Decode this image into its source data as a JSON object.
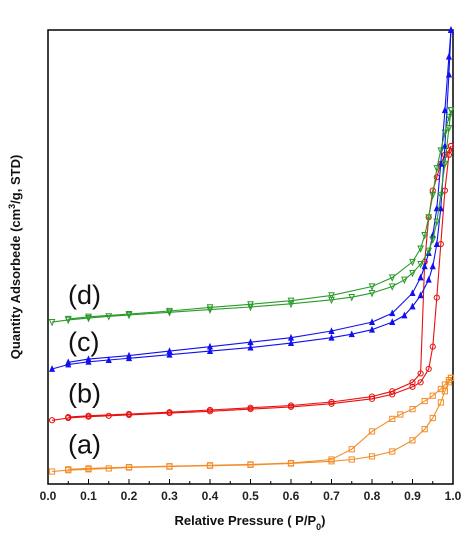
{
  "chart_data": {
    "type": "line",
    "title": "",
    "xlabel": "Relative Pressure ( P/P",
    "xlabel_sub": "0",
    "xlabel_end": ")",
    "ylabel": "Quantity Adsorbede (cm",
    "ylabel_sup": "3",
    "ylabel_end": "/g, STD)",
    "xlim": [
      0.0,
      1.0
    ],
    "ylim": [
      0,
      100
    ],
    "x_ticks": [
      "0.0",
      "0.1",
      "0.2",
      "0.3",
      "0.4",
      "0.5",
      "0.6",
      "0.7",
      "0.8",
      "0.9",
      "1.0"
    ],
    "y_tick_labels_shown": false,
    "grid": false,
    "series": [
      {
        "name": "(a)",
        "color": "#f28c28",
        "marker": "square",
        "adsorption": {
          "x": [
            0.01,
            0.05,
            0.1,
            0.15,
            0.2,
            0.3,
            0.4,
            0.5,
            0.6,
            0.7,
            0.75,
            0.8,
            0.85,
            0.9,
            0.93,
            0.95,
            0.97,
            0.98,
            0.99,
            0.995
          ],
          "y": [
            1.0,
            1.3,
            1.5,
            1.7,
            1.9,
            2.1,
            2.3,
            2.5,
            2.8,
            3.3,
            3.7,
            4.4,
            5.5,
            8.0,
            10.5,
            13.0,
            16.5,
            19.0,
            21.0,
            22.0
          ]
        },
        "desorption": {
          "x": [
            0.995,
            0.99,
            0.98,
            0.97,
            0.95,
            0.93,
            0.9,
            0.87,
            0.85,
            0.8,
            0.75,
            0.7,
            0.6,
            0.5,
            0.4,
            0.3,
            0.2,
            0.1,
            0.05
          ],
          "y": [
            22.0,
            21.5,
            20.5,
            19.5,
            18.0,
            16.8,
            15.0,
            13.8,
            12.8,
            10.0,
            6.0,
            3.7,
            2.9,
            2.6,
            2.4,
            2.2,
            2.0,
            1.7,
            1.5
          ]
        }
      },
      {
        "name": "(b)",
        "color": "#e8100f",
        "marker": "circle",
        "adsorption": {
          "x": [
            0.01,
            0.05,
            0.1,
            0.15,
            0.2,
            0.3,
            0.4,
            0.5,
            0.6,
            0.7,
            0.8,
            0.85,
            0.9,
            0.92,
            0.94,
            0.95,
            0.96,
            0.97,
            0.98,
            0.99,
            0.995
          ],
          "y": [
            12.5,
            13.0,
            13.3,
            13.5,
            13.7,
            14.1,
            14.5,
            15.0,
            15.5,
            16.2,
            17.3,
            18.3,
            20.0,
            21.0,
            24.0,
            29.0,
            40.0,
            52.0,
            64.0,
            72.0,
            74.0
          ]
        },
        "desorption": {
          "x": [
            0.995,
            0.99,
            0.98,
            0.97,
            0.96,
            0.95,
            0.94,
            0.93,
            0.92,
            0.9,
            0.85,
            0.8,
            0.7,
            0.6,
            0.5,
            0.4,
            0.3,
            0.2,
            0.1,
            0.05
          ],
          "y": [
            74.0,
            73.0,
            72.0,
            70.0,
            67.0,
            64.0,
            58.0,
            48.0,
            23.0,
            21.0,
            19.0,
            17.8,
            16.6,
            15.8,
            15.3,
            14.8,
            14.3,
            13.9,
            13.5,
            13.2
          ]
        }
      },
      {
        "name": "(c)",
        "color": "#1010f0",
        "marker": "triangle-up",
        "adsorption": {
          "x": [
            0.01,
            0.05,
            0.1,
            0.15,
            0.2,
            0.3,
            0.4,
            0.5,
            0.6,
            0.7,
            0.75,
            0.8,
            0.85,
            0.88,
            0.9,
            0.92,
            0.94,
            0.95,
            0.96,
            0.97,
            0.98,
            0.99,
            0.995
          ],
          "y": [
            24.0,
            25.0,
            25.6,
            26.0,
            26.4,
            27.2,
            28.0,
            28.8,
            29.8,
            31.0,
            31.8,
            32.8,
            34.5,
            36.0,
            38.0,
            40.5,
            44.0,
            47.0,
            52.0,
            60.0,
            74.0,
            90.0,
            100.0
          ]
        },
        "desorption": {
          "x": [
            0.995,
            0.99,
            0.98,
            0.97,
            0.96,
            0.95,
            0.94,
            0.93,
            0.92,
            0.9,
            0.85,
            0.8,
            0.7,
            0.6,
            0.5,
            0.4,
            0.3,
            0.2,
            0.1,
            0.05
          ],
          "y": [
            100.0,
            94.0,
            82.0,
            70.0,
            60.0,
            54.0,
            50.0,
            47.0,
            44.5,
            41.0,
            36.5,
            34.5,
            32.5,
            31.0,
            30.0,
            29.0,
            28.0,
            27.0,
            26.2,
            25.5
          ]
        }
      },
      {
        "name": "(d)",
        "color": "#2a9a2a",
        "marker": "triangle-down",
        "adsorption": {
          "x": [
            0.01,
            0.05,
            0.1,
            0.15,
            0.2,
            0.3,
            0.4,
            0.5,
            0.6,
            0.7,
            0.75,
            0.8,
            0.85,
            0.88,
            0.9,
            0.92,
            0.94,
            0.95,
            0.96,
            0.97,
            0.98,
            0.99,
            0.995
          ],
          "y": [
            34.5,
            35.0,
            35.4,
            35.8,
            36.1,
            36.7,
            37.3,
            37.9,
            38.6,
            39.5,
            40.1,
            41.0,
            42.5,
            44.0,
            45.5,
            47.5,
            50.5,
            53.0,
            57.0,
            63.0,
            70.0,
            78.0,
            82.0
          ]
        },
        "desorption": {
          "x": [
            0.995,
            0.99,
            0.98,
            0.97,
            0.96,
            0.95,
            0.94,
            0.93,
            0.92,
            0.9,
            0.85,
            0.8,
            0.7,
            0.6,
            0.5,
            0.4,
            0.3,
            0.2,
            0.1,
            0.05
          ],
          "y": [
            82.0,
            80.5,
            77.0,
            73.0,
            69.0,
            63.0,
            58.0,
            54.0,
            51.0,
            48.0,
            44.5,
            42.5,
            40.5,
            39.3,
            38.5,
            37.8,
            37.0,
            36.3,
            35.7,
            35.2
          ]
        }
      }
    ]
  }
}
